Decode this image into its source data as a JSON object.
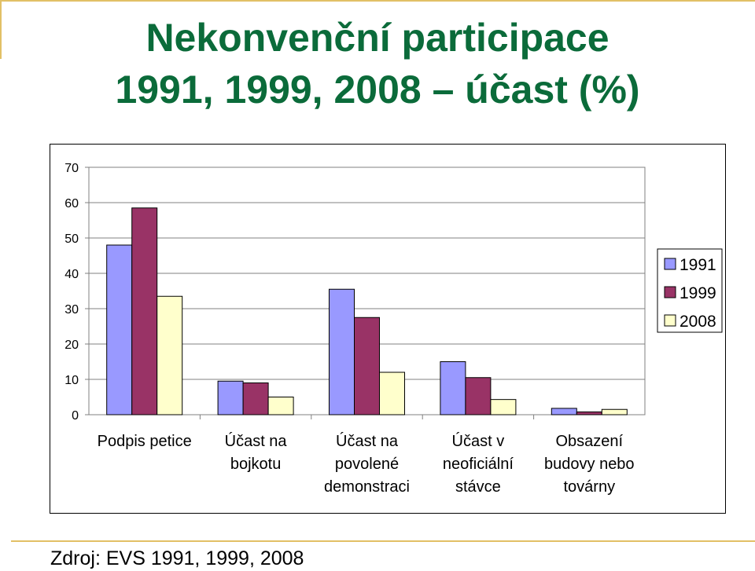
{
  "title": {
    "line1": "Nekonvenční participace",
    "line2": "1991, 1999, 2008 – účast (%)"
  },
  "source": "Zdroj: EVS 1991, 1999, 2008",
  "colors": {
    "title": "#0b6b3a",
    "accent_line": "#e2c066"
  },
  "chart_data": {
    "type": "bar",
    "categories": [
      [
        "Podpis petice"
      ],
      [
        "Účast na",
        "bojkotu"
      ],
      [
        "Účast na",
        "povolené",
        "demonstraci"
      ],
      [
        "Účast v",
        "neoficiální",
        "stávce"
      ],
      [
        "Obsazení",
        "budovy nebo",
        "továrny"
      ]
    ],
    "series": [
      {
        "name": "1991",
        "color": "#9999ff",
        "values": [
          48,
          9.5,
          35.5,
          15,
          1.8
        ]
      },
      {
        "name": "1999",
        "color": "#993366",
        "values": [
          58.5,
          9,
          27.5,
          10.5,
          0.8
        ]
      },
      {
        "name": "2008",
        "color": "#ffffcc",
        "values": [
          33.5,
          5,
          12,
          4.3,
          1.5
        ]
      }
    ],
    "ylim": [
      0,
      70
    ],
    "yticks": [
      0,
      10,
      20,
      30,
      40,
      50,
      60,
      70
    ],
    "grid": true,
    "legend": "right"
  }
}
